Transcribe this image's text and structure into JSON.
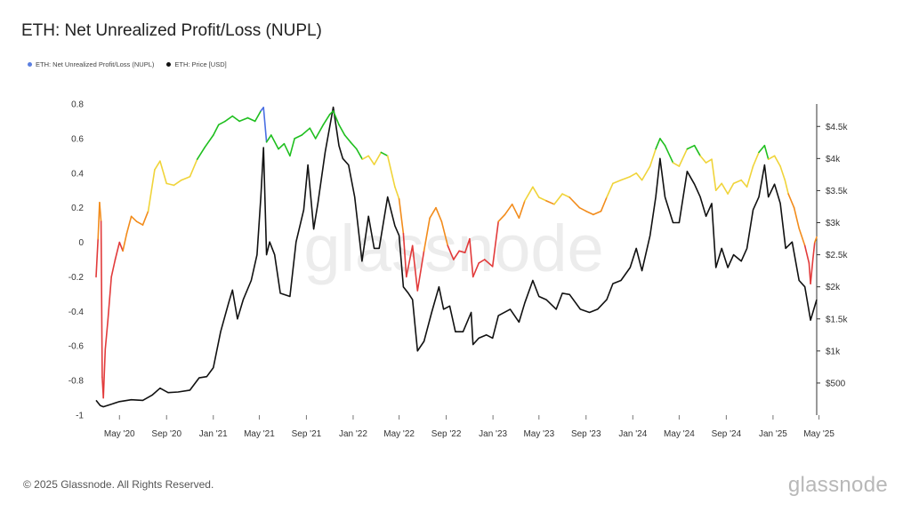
{
  "title": "ETH: Net Unrealized Profit/Loss (NUPL)",
  "legend": [
    {
      "label": "ETH: Net Unrealized Profit/Loss (NUPL)",
      "color": "#5b7fe0"
    },
    {
      "label": "ETH: Price [USD]",
      "color": "#111111"
    }
  ],
  "footer": "© 2025 Glassnode. All Rights Reserved.",
  "brand": "glassnode",
  "watermark": "glassnode",
  "chart_data": {
    "type": "line",
    "title": "ETH: Net Unrealized Profit/Loss (NUPL)",
    "xlabel": "",
    "ylabel": "",
    "x_range": [
      "2020-03-01",
      "2025-04-25"
    ],
    "x_tick_labels": [
      "May '20",
      "Sep '20",
      "Jan '21",
      "May '21",
      "Sep '21",
      "Jan '22",
      "May '22",
      "Sep '22",
      "Jan '23",
      "May '23",
      "Sep '23",
      "Jan '24",
      "May '24",
      "Sep '24",
      "Jan '25",
      "May '25"
    ],
    "x_ticks": [
      "2020-05-01",
      "2020-09-01",
      "2021-01-01",
      "2021-05-01",
      "2021-09-01",
      "2022-01-01",
      "2022-05-01",
      "2022-09-01",
      "2023-01-01",
      "2023-05-01",
      "2023-09-01",
      "2024-01-01",
      "2024-05-01",
      "2024-09-01",
      "2025-01-01",
      "2025-05-01"
    ],
    "y_left": {
      "ylim": [
        -1,
        0.8
      ],
      "ticks": [
        -1,
        -0.8,
        -0.6,
        -0.4,
        -0.2,
        0,
        0.2,
        0.4,
        0.6,
        0.8
      ]
    },
    "y_right": {
      "ylim": [
        0,
        4850
      ],
      "ticks": [
        500,
        1000,
        1500,
        2000,
        2500,
        3000,
        3500,
        4000,
        4500
      ],
      "tick_labels": [
        "$500",
        "$1k",
        "$1.5k",
        "$2k",
        "$2.5k",
        "$3k",
        "$3.5k",
        "$4k",
        "$4.5k"
      ]
    },
    "grid": false,
    "legend_position": "top-left",
    "nupl_color_bands": [
      {
        "min": 0.5,
        "color": "#1fbf1f"
      },
      {
        "min": 0.25,
        "color": "#f0d43a"
      },
      {
        "min": 0.0,
        "color": "#f28c1c"
      },
      {
        "min": -1.0,
        "color": "#e23b3b"
      }
    ],
    "peak_color": "#4a6fe3",
    "series": [
      {
        "name": "ETH: Net Unrealized Profit/Loss (NUPL)",
        "axis": "left",
        "points": [
          [
            "2020-03-01",
            -0.2
          ],
          [
            "2020-03-06",
            0.02
          ],
          [
            "2020-03-10",
            0.23
          ],
          [
            "2020-03-14",
            0.12
          ],
          [
            "2020-03-17",
            -0.78
          ],
          [
            "2020-03-20",
            -0.9
          ],
          [
            "2020-03-25",
            -0.62
          ],
          [
            "2020-04-01",
            -0.45
          ],
          [
            "2020-04-10",
            -0.2
          ],
          [
            "2020-04-20",
            -0.1
          ],
          [
            "2020-05-01",
            0.0
          ],
          [
            "2020-05-10",
            -0.05
          ],
          [
            "2020-05-20",
            0.05
          ],
          [
            "2020-06-01",
            0.15
          ],
          [
            "2020-06-15",
            0.12
          ],
          [
            "2020-07-01",
            0.1
          ],
          [
            "2020-07-15",
            0.18
          ],
          [
            "2020-08-01",
            0.42
          ],
          [
            "2020-08-15",
            0.47
          ],
          [
            "2020-09-01",
            0.34
          ],
          [
            "2020-09-20",
            0.33
          ],
          [
            "2020-10-10",
            0.36
          ],
          [
            "2020-11-01",
            0.38
          ],
          [
            "2020-11-20",
            0.48
          ],
          [
            "2020-12-10",
            0.55
          ],
          [
            "2021-01-01",
            0.62
          ],
          [
            "2021-01-15",
            0.68
          ],
          [
            "2021-02-01",
            0.7
          ],
          [
            "2021-02-20",
            0.73
          ],
          [
            "2021-03-10",
            0.7
          ],
          [
            "2021-04-01",
            0.72
          ],
          [
            "2021-04-20",
            0.7
          ],
          [
            "2021-05-05",
            0.76
          ],
          [
            "2021-05-12",
            0.78
          ],
          [
            "2021-05-20",
            0.58
          ],
          [
            "2021-06-01",
            0.62
          ],
          [
            "2021-06-20",
            0.54
          ],
          [
            "2021-07-05",
            0.57
          ],
          [
            "2021-07-20",
            0.5
          ],
          [
            "2021-08-01",
            0.6
          ],
          [
            "2021-08-20",
            0.62
          ],
          [
            "2021-09-10",
            0.66
          ],
          [
            "2021-09-25",
            0.6
          ],
          [
            "2021-10-15",
            0.68
          ],
          [
            "2021-11-01",
            0.74
          ],
          [
            "2021-11-10",
            0.76
          ],
          [
            "2021-11-25",
            0.68
          ],
          [
            "2021-12-10",
            0.62
          ],
          [
            "2021-12-25",
            0.58
          ],
          [
            "2022-01-10",
            0.54
          ],
          [
            "2022-01-25",
            0.48
          ],
          [
            "2022-02-10",
            0.5
          ],
          [
            "2022-02-25",
            0.45
          ],
          [
            "2022-03-15",
            0.52
          ],
          [
            "2022-04-01",
            0.5
          ],
          [
            "2022-04-20",
            0.32
          ],
          [
            "2022-05-01",
            0.25
          ],
          [
            "2022-05-12",
            0.05
          ],
          [
            "2022-05-20",
            -0.2
          ],
          [
            "2022-06-05",
            -0.02
          ],
          [
            "2022-06-18",
            -0.28
          ],
          [
            "2022-07-05",
            -0.05
          ],
          [
            "2022-07-20",
            0.14
          ],
          [
            "2022-08-05",
            0.2
          ],
          [
            "2022-08-20",
            0.12
          ],
          [
            "2022-09-05",
            -0.02
          ],
          [
            "2022-09-20",
            -0.1
          ],
          [
            "2022-10-05",
            -0.05
          ],
          [
            "2022-10-20",
            -0.06
          ],
          [
            "2022-11-01",
            0.02
          ],
          [
            "2022-11-10",
            -0.2
          ],
          [
            "2022-11-25",
            -0.12
          ],
          [
            "2022-12-10",
            -0.1
          ],
          [
            "2022-12-31",
            -0.14
          ],
          [
            "2023-01-15",
            0.12
          ],
          [
            "2023-02-01",
            0.16
          ],
          [
            "2023-02-20",
            0.22
          ],
          [
            "2023-03-10",
            0.14
          ],
          [
            "2023-03-25",
            0.24
          ],
          [
            "2023-04-15",
            0.32
          ],
          [
            "2023-05-01",
            0.26
          ],
          [
            "2023-05-20",
            0.24
          ],
          [
            "2023-06-10",
            0.22
          ],
          [
            "2023-07-01",
            0.28
          ],
          [
            "2023-07-20",
            0.26
          ],
          [
            "2023-08-15",
            0.2
          ],
          [
            "2023-09-01",
            0.18
          ],
          [
            "2023-09-20",
            0.16
          ],
          [
            "2023-10-10",
            0.18
          ],
          [
            "2023-10-25",
            0.26
          ],
          [
            "2023-11-10",
            0.34
          ],
          [
            "2023-12-01",
            0.36
          ],
          [
            "2023-12-25",
            0.38
          ],
          [
            "2024-01-10",
            0.4
          ],
          [
            "2024-01-25",
            0.36
          ],
          [
            "2024-02-15",
            0.44
          ],
          [
            "2024-03-01",
            0.54
          ],
          [
            "2024-03-12",
            0.6
          ],
          [
            "2024-03-25",
            0.56
          ],
          [
            "2024-04-15",
            0.46
          ],
          [
            "2024-05-01",
            0.44
          ],
          [
            "2024-05-22",
            0.54
          ],
          [
            "2024-06-10",
            0.56
          ],
          [
            "2024-06-25",
            0.5
          ],
          [
            "2024-07-10",
            0.46
          ],
          [
            "2024-07-25",
            0.48
          ],
          [
            "2024-08-05",
            0.3
          ],
          [
            "2024-08-20",
            0.34
          ],
          [
            "2024-09-05",
            0.28
          ],
          [
            "2024-09-20",
            0.34
          ],
          [
            "2024-10-10",
            0.36
          ],
          [
            "2024-10-25",
            0.32
          ],
          [
            "2024-11-10",
            0.44
          ],
          [
            "2024-11-25",
            0.52
          ],
          [
            "2024-12-10",
            0.56
          ],
          [
            "2024-12-20",
            0.48
          ],
          [
            "2025-01-05",
            0.5
          ],
          [
            "2025-01-20",
            0.44
          ],
          [
            "2025-02-01",
            0.36
          ],
          [
            "2025-02-10",
            0.28
          ],
          [
            "2025-02-25",
            0.2
          ],
          [
            "2025-03-10",
            0.08
          ],
          [
            "2025-03-25",
            -0.02
          ],
          [
            "2025-04-05",
            -0.12
          ],
          [
            "2025-04-09",
            -0.24
          ],
          [
            "2025-04-15",
            -0.1
          ],
          [
            "2025-04-20",
            0.0
          ],
          [
            "2025-04-25",
            0.03
          ]
        ]
      },
      {
        "name": "ETH: Price [USD]",
        "axis": "right",
        "color": "#111111",
        "points": [
          [
            "2020-03-01",
            230
          ],
          [
            "2020-03-12",
            150
          ],
          [
            "2020-03-20",
            130
          ],
          [
            "2020-04-10",
            170
          ],
          [
            "2020-05-01",
            210
          ],
          [
            "2020-06-01",
            240
          ],
          [
            "2020-07-01",
            230
          ],
          [
            "2020-07-25",
            310
          ],
          [
            "2020-08-15",
            420
          ],
          [
            "2020-09-05",
            350
          ],
          [
            "2020-10-01",
            360
          ],
          [
            "2020-11-01",
            390
          ],
          [
            "2020-11-25",
            580
          ],
          [
            "2020-12-15",
            600
          ],
          [
            "2021-01-01",
            740
          ],
          [
            "2021-01-20",
            1300
          ],
          [
            "2021-02-10",
            1750
          ],
          [
            "2021-02-20",
            1950
          ],
          [
            "2021-03-05",
            1500
          ],
          [
            "2021-03-20",
            1800
          ],
          [
            "2021-04-10",
            2100
          ],
          [
            "2021-04-25",
            2500
          ],
          [
            "2021-05-05",
            3400
          ],
          [
            "2021-05-12",
            4170
          ],
          [
            "2021-05-20",
            2500
          ],
          [
            "2021-05-28",
            2700
          ],
          [
            "2021-06-10",
            2500
          ],
          [
            "2021-06-25",
            1900
          ],
          [
            "2021-07-20",
            1850
          ],
          [
            "2021-08-05",
            2700
          ],
          [
            "2021-08-25",
            3200
          ],
          [
            "2021-09-05",
            3900
          ],
          [
            "2021-09-20",
            2900
          ],
          [
            "2021-10-01",
            3300
          ],
          [
            "2021-10-20",
            4100
          ],
          [
            "2021-11-10",
            4800
          ],
          [
            "2021-11-25",
            4200
          ],
          [
            "2021-12-05",
            4000
          ],
          [
            "2021-12-20",
            3900
          ],
          [
            "2022-01-05",
            3400
          ],
          [
            "2022-01-24",
            2400
          ],
          [
            "2022-02-10",
            3100
          ],
          [
            "2022-02-25",
            2600
          ],
          [
            "2022-03-10",
            2600
          ],
          [
            "2022-04-01",
            3400
          ],
          [
            "2022-04-20",
            2950
          ],
          [
            "2022-05-01",
            2800
          ],
          [
            "2022-05-12",
            2000
          ],
          [
            "2022-05-25",
            1900
          ],
          [
            "2022-06-05",
            1800
          ],
          [
            "2022-06-18",
            1000
          ],
          [
            "2022-07-05",
            1150
          ],
          [
            "2022-07-25",
            1600
          ],
          [
            "2022-08-13",
            2000
          ],
          [
            "2022-08-25",
            1650
          ],
          [
            "2022-09-10",
            1700
          ],
          [
            "2022-09-25",
            1300
          ],
          [
            "2022-10-15",
            1300
          ],
          [
            "2022-11-05",
            1600
          ],
          [
            "2022-11-10",
            1100
          ],
          [
            "2022-11-25",
            1200
          ],
          [
            "2022-12-15",
            1250
          ],
          [
            "2022-12-31",
            1200
          ],
          [
            "2023-01-15",
            1550
          ],
          [
            "2023-02-15",
            1650
          ],
          [
            "2023-03-10",
            1450
          ],
          [
            "2023-03-25",
            1750
          ],
          [
            "2023-04-15",
            2100
          ],
          [
            "2023-05-01",
            1850
          ],
          [
            "2023-05-20",
            1800
          ],
          [
            "2023-06-15",
            1650
          ],
          [
            "2023-07-01",
            1900
          ],
          [
            "2023-07-20",
            1880
          ],
          [
            "2023-08-17",
            1650
          ],
          [
            "2023-09-10",
            1600
          ],
          [
            "2023-10-01",
            1650
          ],
          [
            "2023-10-25",
            1800
          ],
          [
            "2023-11-10",
            2050
          ],
          [
            "2023-12-01",
            2100
          ],
          [
            "2023-12-25",
            2300
          ],
          [
            "2024-01-10",
            2600
          ],
          [
            "2024-01-25",
            2250
          ],
          [
            "2024-02-15",
            2800
          ],
          [
            "2024-03-01",
            3400
          ],
          [
            "2024-03-12",
            4000
          ],
          [
            "2024-03-25",
            3400
          ],
          [
            "2024-04-15",
            3000
          ],
          [
            "2024-05-01",
            3000
          ],
          [
            "2024-05-22",
            3800
          ],
          [
            "2024-06-10",
            3600
          ],
          [
            "2024-06-25",
            3400
          ],
          [
            "2024-07-10",
            3100
          ],
          [
            "2024-07-25",
            3300
          ],
          [
            "2024-08-05",
            2300
          ],
          [
            "2024-08-20",
            2600
          ],
          [
            "2024-09-05",
            2300
          ],
          [
            "2024-09-20",
            2500
          ],
          [
            "2024-10-10",
            2400
          ],
          [
            "2024-10-25",
            2600
          ],
          [
            "2024-11-10",
            3200
          ],
          [
            "2024-11-25",
            3400
          ],
          [
            "2024-12-10",
            3900
          ],
          [
            "2024-12-20",
            3400
          ],
          [
            "2025-01-05",
            3600
          ],
          [
            "2025-01-20",
            3300
          ],
          [
            "2025-02-03",
            2600
          ],
          [
            "2025-02-20",
            2700
          ],
          [
            "2025-03-10",
            2100
          ],
          [
            "2025-03-25",
            2000
          ],
          [
            "2025-04-09",
            1480
          ],
          [
            "2025-04-15",
            1600
          ],
          [
            "2025-04-25",
            1800
          ]
        ]
      }
    ]
  }
}
